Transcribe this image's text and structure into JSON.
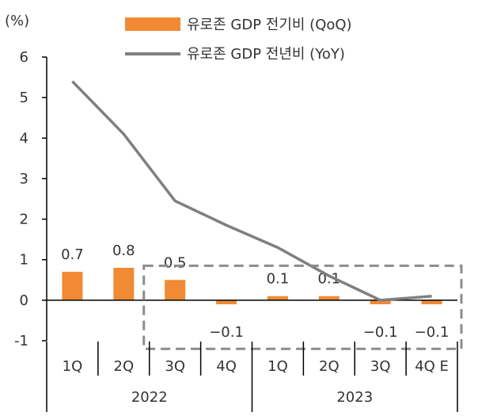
{
  "chart_data": {
    "type": "bar",
    "y_unit_label": "(%)",
    "ylim": [
      -1,
      6
    ],
    "yticks": [
      -1,
      0,
      1,
      2,
      3,
      4,
      5,
      6
    ],
    "grid": false,
    "legend_placement": "top-center",
    "categories": [
      "1Q",
      "2Q",
      "3Q",
      "4Q",
      "1Q",
      "2Q",
      "3Q",
      "4Q E"
    ],
    "year_groups": [
      {
        "label": "2022",
        "start": 0,
        "end": 3
      },
      {
        "label": "2023",
        "start": 4,
        "end": 7
      }
    ],
    "series": [
      {
        "name": "유로존 GDP 전기비 (QoQ)",
        "type": "bar",
        "color": "#F08A35",
        "values": [
          0.7,
          0.8,
          0.5,
          -0.1,
          0.1,
          0.1,
          -0.1,
          -0.1
        ],
        "data_labels": [
          "0.7",
          "0.8",
          "0.5",
          "−0.1",
          "0.1",
          "0.1",
          "−0.1",
          "−0.1"
        ]
      },
      {
        "name": "유로존 GDP 전년비 (YoY)",
        "type": "line",
        "color": "#7F7F7F",
        "values": [
          5.4,
          4.1,
          2.45,
          1.85,
          1.3,
          0.6,
          0.0,
          0.1
        ]
      }
    ],
    "highlight": {
      "style": "dashed-box",
      "color": "#8C8C8C",
      "categories": [
        "3Q",
        "4Q E"
      ]
    }
  }
}
